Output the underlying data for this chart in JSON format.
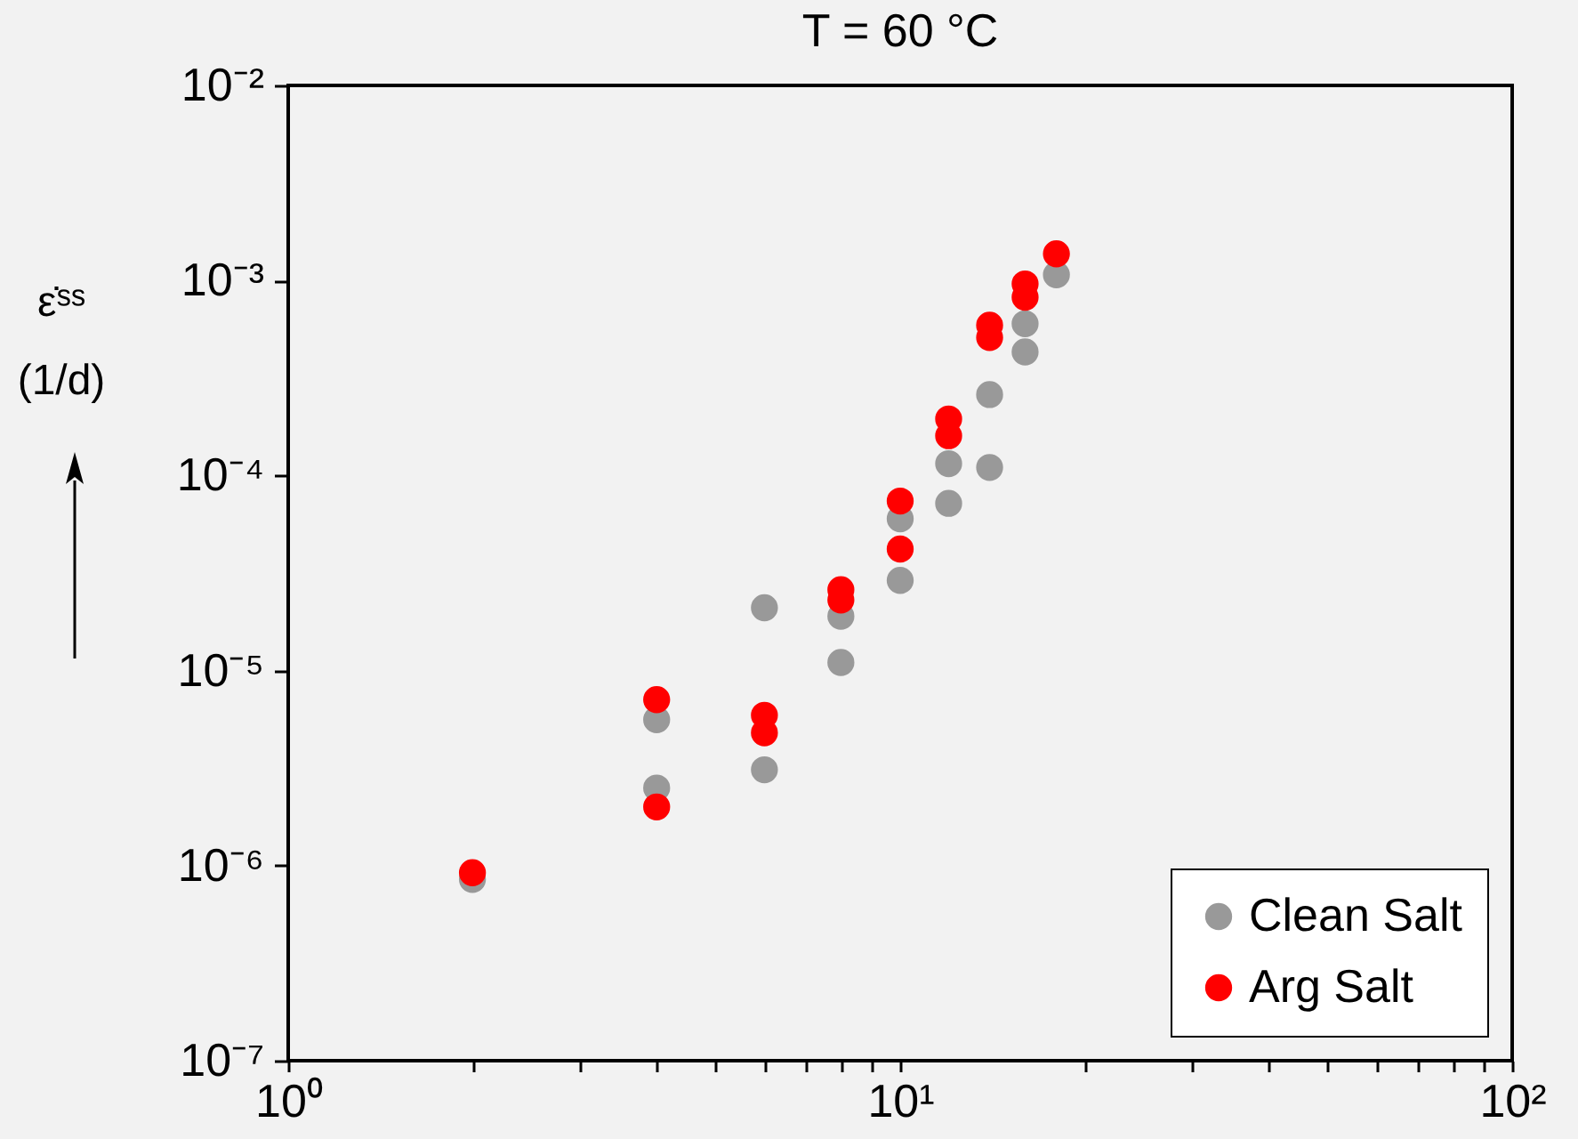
{
  "chart_data": {
    "type": "scatter",
    "title": "T = 60 °C",
    "ylabel": "ε̇ˢˢ (1/d)",
    "log": "xy",
    "grid": false,
    "legend": "bottom right",
    "xlim": [
      1,
      100
    ],
    "ylim": [
      1e-07,
      0.01
    ],
    "xticks": [
      {
        "value": 1,
        "label": "10⁰"
      },
      {
        "value": 2,
        "label": null
      },
      {
        "value": 3,
        "label": null
      },
      {
        "value": 4,
        "label": null
      },
      {
        "value": 5,
        "label": null
      },
      {
        "value": 6,
        "label": null
      },
      {
        "value": 7,
        "label": null
      },
      {
        "value": 8,
        "label": null
      },
      {
        "value": 9,
        "label": null
      },
      {
        "value": 10,
        "label": "10¹"
      },
      {
        "value": 20,
        "label": null
      },
      {
        "value": 30,
        "label": null
      },
      {
        "value": 40,
        "label": null
      },
      {
        "value": 50,
        "label": null
      },
      {
        "value": 60,
        "label": null
      },
      {
        "value": 70,
        "label": null
      },
      {
        "value": 80,
        "label": null
      },
      {
        "value": 90,
        "label": null
      },
      {
        "value": 100,
        "label": "10²"
      }
    ],
    "yticks": [
      {
        "value": 1e-07,
        "label": "10⁻⁷"
      },
      {
        "value": 1e-06,
        "label": "10⁻⁶"
      },
      {
        "value": 1e-05,
        "label": "10⁻⁵"
      },
      {
        "value": 0.0001,
        "label": "10⁻⁴"
      },
      {
        "value": 0.001,
        "label": "10⁻³"
      },
      {
        "value": 0.01,
        "label": "10⁻²"
      }
    ],
    "series": [
      {
        "name": "Clean Salt",
        "color": "#999999",
        "x": [
          2,
          4,
          4,
          6,
          6,
          8,
          8,
          10,
          10,
          12,
          12,
          14,
          14,
          16,
          16,
          18
        ],
        "values": [
          8.5e-07,
          5.6e-06,
          2.5e-06,
          2.1e-05,
          3.1e-06,
          1.9e-05,
          1.1e-05,
          6e-05,
          2.9e-05,
          0.000115,
          7.2e-05,
          0.00026,
          0.00011,
          0.0006,
          0.00043,
          0.00107
        ]
      },
      {
        "name": "Arg Salt",
        "color": "#ff0000",
        "x": [
          2,
          4,
          4,
          6,
          6,
          8,
          8,
          10,
          10,
          12,
          12,
          14,
          14,
          16,
          16,
          18
        ],
        "values": [
          9.2e-07,
          7.1e-06,
          2e-06,
          5.9e-06,
          4.8e-06,
          2.6e-05,
          2.3e-05,
          7.4e-05,
          4.2e-05,
          0.000195,
          0.00016,
          0.00059,
          0.00051,
          0.00096,
          0.00082,
          0.00137
        ]
      }
    ]
  }
}
